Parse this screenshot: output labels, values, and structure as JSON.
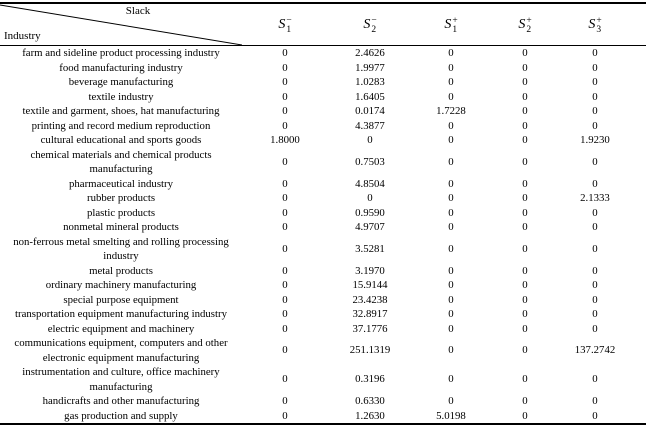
{
  "table": {
    "corner": {
      "top_label": "Slack",
      "bottom_label": "Industry"
    },
    "columns": [
      {
        "base": "S",
        "sup": "−",
        "sub": "1",
        "label": "S1-"
      },
      {
        "base": "S",
        "sup": "−",
        "sub": "2",
        "label": "S2-"
      },
      {
        "base": "S",
        "sup": "+",
        "sub": "1",
        "label": "S1+"
      },
      {
        "base": "S",
        "sup": "+",
        "sub": "2",
        "label": "S2+"
      },
      {
        "base": "S",
        "sup": "+",
        "sub": "3",
        "label": "S3+"
      }
    ],
    "rows": [
      {
        "industry": "farm and sideline product processing industry",
        "values": [
          "0",
          "2.4626",
          "0",
          "0",
          "0"
        ]
      },
      {
        "industry": "food manufacturing industry",
        "values": [
          "0",
          "1.9977",
          "0",
          "0",
          "0"
        ]
      },
      {
        "industry": "beverage manufacturing",
        "values": [
          "0",
          "1.0283",
          "0",
          "0",
          "0"
        ]
      },
      {
        "industry": "textile industry",
        "values": [
          "0",
          "1.6405",
          "0",
          "0",
          "0"
        ]
      },
      {
        "industry": "textile and garment, shoes, hat manufacturing",
        "values": [
          "0",
          "0.0174",
          "1.7228",
          "0",
          "0"
        ]
      },
      {
        "industry": "printing and record medium reproduction",
        "values": [
          "0",
          "4.3877",
          "0",
          "0",
          "0"
        ]
      },
      {
        "industry": "cultural educational and sports goods",
        "values": [
          "1.8000",
          "0",
          "0",
          "0",
          "1.9230"
        ]
      },
      {
        "industry": "chemical materials and chemical products\nmanufacturing",
        "values": [
          "0",
          "0.7503",
          "0",
          "0",
          "0"
        ]
      },
      {
        "industry": "pharmaceutical industry",
        "values": [
          "0",
          "4.8504",
          "0",
          "0",
          "0"
        ]
      },
      {
        "industry": "rubber products",
        "values": [
          "0",
          "0",
          "0",
          "0",
          "2.1333"
        ]
      },
      {
        "industry": "plastic products",
        "values": [
          "0",
          "0.9590",
          "0",
          "0",
          "0"
        ]
      },
      {
        "industry": "nonmetal mineral products",
        "values": [
          "0",
          "4.9707",
          "0",
          "0",
          "0"
        ]
      },
      {
        "industry": "non-ferrous metal smelting and rolling processing\nindustry",
        "values": [
          "0",
          "3.5281",
          "0",
          "0",
          "0"
        ]
      },
      {
        "industry": "metal products",
        "values": [
          "0",
          "3.1970",
          "0",
          "0",
          "0"
        ]
      },
      {
        "industry": "ordinary machinery manufacturing",
        "values": [
          "0",
          "15.9144",
          "0",
          "0",
          "0"
        ]
      },
      {
        "industry": "special purpose equipment",
        "values": [
          "0",
          "23.4238",
          "0",
          "0",
          "0"
        ]
      },
      {
        "industry": "transportation equipment manufacturing industry",
        "values": [
          "0",
          "32.8917",
          "0",
          "0",
          "0"
        ]
      },
      {
        "industry": "electric equipment and machinery",
        "values": [
          "0",
          "37.1776",
          "0",
          "0",
          "0"
        ]
      },
      {
        "industry": "communications equipment, computers and other\nelectronic equipment manufacturing",
        "values": [
          "0",
          "251.1319",
          "0",
          "0",
          "137.2742"
        ]
      },
      {
        "industry": "instrumentation and culture, office machinery\nmanufacturing",
        "values": [
          "0",
          "0.3196",
          "0",
          "0",
          "0"
        ]
      },
      {
        "industry": "handicrafts and other manufacturing",
        "values": [
          "0",
          "0.6330",
          "0",
          "0",
          "0"
        ]
      },
      {
        "industry": "gas production and supply",
        "values": [
          "0",
          "1.2630",
          "5.0198",
          "0",
          "0"
        ]
      }
    ]
  }
}
